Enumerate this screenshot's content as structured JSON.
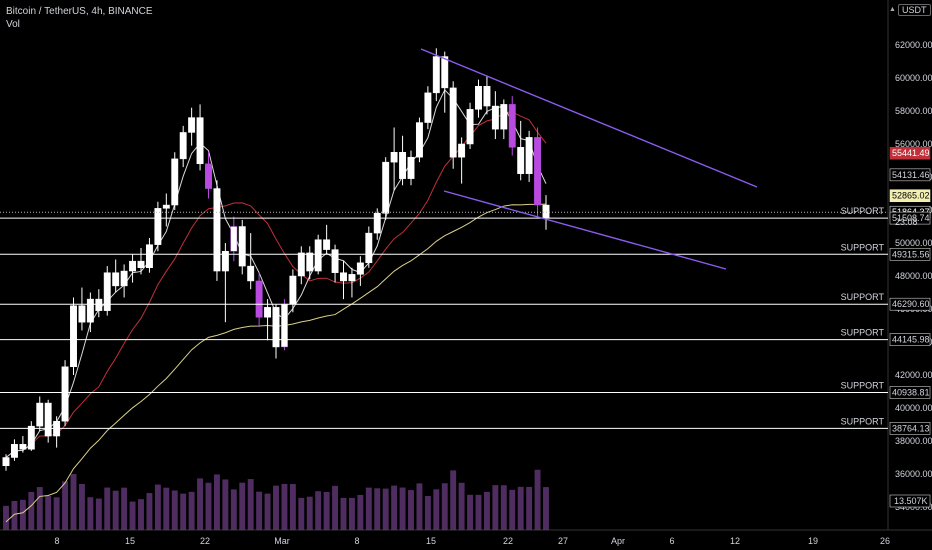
{
  "header": {
    "title": "Bitcoin / TetherUS, 4h, BINANCE",
    "volume": "Vol"
  },
  "currency": "USDT",
  "colors": {
    "background": "#000000",
    "candle": "#ffffff",
    "candle_body": "#ffffff",
    "highlight_candle": "#b84ae0",
    "ma_short": "#d8d8d8",
    "ma_mid": "#c0303a",
    "ma_long": "#d9d08a",
    "channel": "#8a5cf0",
    "volume": "#6b3c80",
    "support": "#ffffff",
    "axis_text": "#d1d4dc"
  },
  "chart_data": {
    "type": "candlestick",
    "xlabels": [
      "8",
      "15",
      "22",
      "Mar",
      "8",
      "15",
      "22",
      "27",
      "Apr",
      "6",
      "12",
      "19",
      "26"
    ],
    "yticks": [
      34000,
      36000,
      38000,
      40000,
      42000,
      44000,
      46000,
      48000,
      50000,
      52000,
      54000,
      56000,
      58000,
      60000,
      62000
    ],
    "ytick_labels": [
      "34000.00",
      "36000.00",
      "38000.00",
      "40000.00",
      "42000.00",
      "44000.00",
      "46000.00",
      "48000.00",
      "50000.00",
      "52000.00",
      "54000.00",
      "56000.00",
      "58000.00",
      "60000.00",
      "62000.00"
    ],
    "ylim": [
      33500,
      64000
    ],
    "candles": [
      [
        36500,
        37200,
        36200,
        37000
      ],
      [
        37000,
        38100,
        36800,
        37800
      ],
      [
        37800,
        38300,
        37300,
        37500
      ],
      [
        37500,
        39200,
        37400,
        38900
      ],
      [
        38900,
        40700,
        38600,
        40300
      ],
      [
        40300,
        40500,
        37900,
        38300
      ],
      [
        38300,
        39500,
        37600,
        39200
      ],
      [
        39200,
        42900,
        38900,
        42500
      ],
      [
        42500,
        46700,
        42000,
        46200
      ],
      [
        46200,
        47300,
        44700,
        45200
      ],
      [
        45200,
        47000,
        44600,
        46600
      ],
      [
        46600,
        47200,
        45500,
        45900
      ],
      [
        45900,
        48600,
        45600,
        48200
      ],
      [
        48200,
        49000,
        47000,
        47400
      ],
      [
        47400,
        48700,
        46700,
        48300
      ],
      [
        48300,
        49300,
        47600,
        48900
      ],
      [
        48900,
        49700,
        48100,
        48500
      ],
      [
        48500,
        50300,
        48200,
        49900
      ],
      [
        49900,
        52500,
        49500,
        52100
      ],
      [
        52100,
        53000,
        51000,
        52300
      ],
      [
        52300,
        55500,
        52000,
        55100
      ],
      [
        55100,
        57100,
        54600,
        56700
      ],
      [
        56700,
        58200,
        55900,
        57600
      ],
      [
        57600,
        58400,
        54400,
        54800
      ],
      [
        54800,
        55500,
        52700,
        53300
      ],
      [
        53300,
        53800,
        47700,
        48300
      ],
      [
        48300,
        50000,
        45200,
        49500
      ],
      [
        49500,
        51600,
        48900,
        51000
      ],
      [
        51000,
        51400,
        48100,
        48600
      ],
      [
        48600,
        50600,
        47200,
        47700
      ],
      [
        47700,
        48200,
        44900,
        45500
      ],
      [
        45500,
        46600,
        44100,
        46100
      ],
      [
        46100,
        46300,
        43000,
        43700
      ],
      [
        43700,
        46600,
        43500,
        46300
      ],
      [
        46300,
        48400,
        45800,
        48000
      ],
      [
        48000,
        49800,
        47500,
        49400
      ],
      [
        49400,
        49800,
        47800,
        48300
      ],
      [
        48300,
        50500,
        48100,
        50200
      ],
      [
        50200,
        51100,
        49300,
        49600
      ],
      [
        49600,
        49900,
        47600,
        48200
      ],
      [
        48200,
        48900,
        46600,
        47700
      ],
      [
        47700,
        48500,
        46700,
        48100
      ],
      [
        48100,
        49200,
        47400,
        48800
      ],
      [
        48800,
        51000,
        48500,
        50600
      ],
      [
        50600,
        52100,
        50200,
        51800
      ],
      [
        51800,
        55200,
        51400,
        54900
      ],
      [
        54900,
        57000,
        53200,
        55500
      ],
      [
        55500,
        56500,
        53500,
        53900
      ],
      [
        53900,
        55600,
        53500,
        55200
      ],
      [
        55200,
        57600,
        54900,
        57300
      ],
      [
        57300,
        59500,
        56900,
        59100
      ],
      [
        59100,
        61800,
        58600,
        61300
      ],
      [
        61300,
        61600,
        57900,
        59400
      ],
      [
        59400,
        59800,
        54500,
        55200
      ],
      [
        55200,
        56400,
        53600,
        56000
      ],
      [
        56000,
        58500,
        55700,
        58100
      ],
      [
        58100,
        59900,
        57600,
        59500
      ],
      [
        59500,
        60100,
        57800,
        58300
      ],
      [
        58300,
        59200,
        56300,
        56900
      ],
      [
        56900,
        58700,
        56300,
        58400
      ],
      [
        58400,
        58900,
        55300,
        55800
      ],
      [
        55800,
        57400,
        53800,
        54200
      ],
      [
        54200,
        56800,
        53700,
        56400
      ],
      [
        56400,
        57000,
        51600,
        52300
      ],
      [
        52300,
        52900,
        50800,
        51500
      ]
    ],
    "volume_label": "13.507K",
    "support_levels": [
      51508.74,
      49315.56,
      46290.6,
      44145.98,
      40938.81,
      38764.13
    ],
    "support_text": "SUPPORT",
    "price_labels": [
      {
        "value": 55441.49,
        "text": "55441.49",
        "kind": "ma"
      },
      {
        "value": 54131.46,
        "text": "54131.46",
        "kind": "plain"
      },
      {
        "value": 52865.02,
        "text": "52865.02",
        "kind": "ma-long"
      },
      {
        "value": 51864.37,
        "text": "51864.37",
        "kind": "current"
      },
      {
        "value": 51508.74,
        "text": "51508.74",
        "kind": "plain"
      },
      {
        "value": 49315.56,
        "text": "49315.56",
        "kind": "plain"
      },
      {
        "value": 46290.6,
        "text": "46290.60",
        "kind": "plain"
      },
      {
        "value": 44145.98,
        "text": "44145.98",
        "kind": "plain"
      },
      {
        "value": 40938.81,
        "text": "40938.81",
        "kind": "plain"
      },
      {
        "value": 38764.13,
        "text": "38764.13",
        "kind": "plain"
      }
    ],
    "countdown": "23:08",
    "channel": {
      "upper": [
        {
          "x": "Mar 13",
          "y": 61800
        },
        {
          "x": "Apr 14",
          "y": 53500
        }
      ],
      "lower": [
        {
          "x": "Mar 14",
          "y": 53500
        },
        {
          "x": "Apr 11",
          "y": 48500
        }
      ]
    }
  }
}
